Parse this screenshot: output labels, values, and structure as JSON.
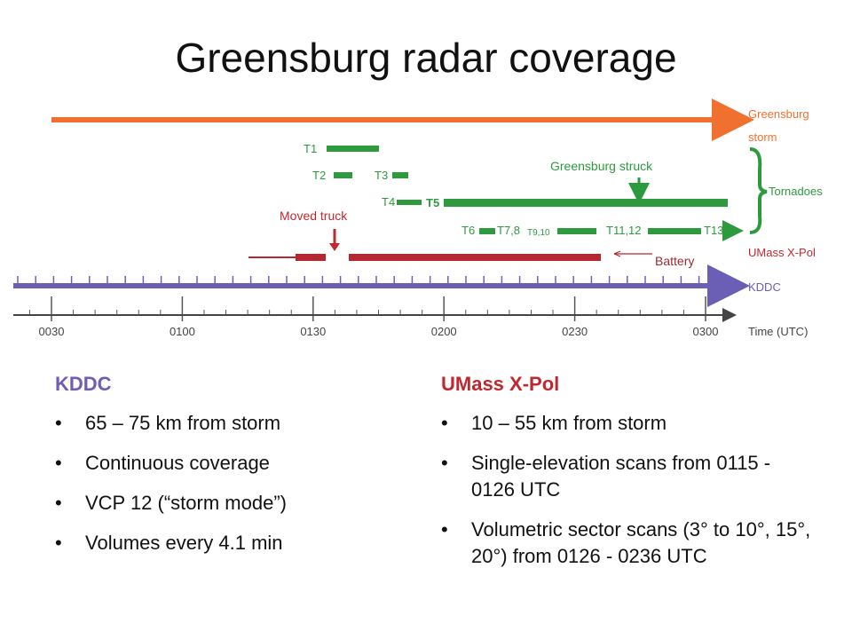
{
  "title": "Greensburg radar coverage",
  "diagram": {
    "storm_label": [
      "Greensburg",
      "storm"
    ],
    "tornadoes_label": "Tornadoes",
    "xpol_label": "UMass X-Pol",
    "kddc_label": "KDDC",
    "time_label": "Time (UTC)",
    "tornado_labels": [
      "T1",
      "T2",
      "T3",
      "T4",
      "T5",
      "T6",
      "T7,8",
      "T9,10",
      "T11,12",
      "T13"
    ],
    "annotations": {
      "struck": "Greensburg struck",
      "moved": "Moved truck",
      "battery": "Battery"
    },
    "time_ticks": [
      "0030",
      "0100",
      "0130",
      "0200",
      "0230",
      "0300"
    ]
  },
  "columns": [
    {
      "heading": "KDDC",
      "bullets": [
        "65 – 75 km from storm",
        "Continuous coverage",
        "VCP 12 (“storm mode”)",
        "Volumes every 4.1 min"
      ]
    },
    {
      "heading": "UMass X-Pol",
      "bullets": [
        "10 – 55 km from storm",
        "Single-elevation scans from 0115 - 0126 UTC",
        "Volumetric sector scans (3° to 10°, 15°, 20°) from 0126 - 0236 UTC"
      ]
    }
  ]
}
